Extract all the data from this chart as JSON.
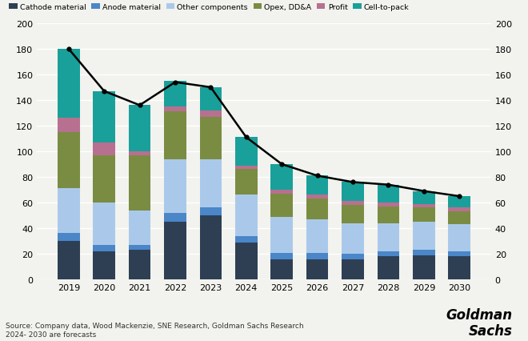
{
  "years": [
    2019,
    2020,
    2021,
    2022,
    2023,
    2024,
    2025,
    2026,
    2027,
    2028,
    2029,
    2030
  ],
  "cathode": [
    30,
    22,
    23,
    45,
    50,
    29,
    16,
    16,
    16,
    18,
    19,
    18
  ],
  "anode": [
    6,
    5,
    4,
    7,
    6,
    5,
    5,
    5,
    4,
    4,
    4,
    4
  ],
  "other_components": [
    35,
    33,
    27,
    42,
    38,
    32,
    28,
    26,
    24,
    22,
    22,
    21
  ],
  "opex": [
    44,
    37,
    43,
    37,
    33,
    20,
    18,
    16,
    14,
    13,
    11,
    10
  ],
  "profit": [
    11,
    10,
    3,
    4,
    5,
    3,
    3,
    3,
    3,
    3,
    3,
    3
  ],
  "cell_to_pack": [
    54,
    40,
    36,
    20,
    18,
    22,
    20,
    15,
    15,
    14,
    10,
    9
  ],
  "line_values": [
    180,
    147,
    136,
    154,
    150,
    111,
    90,
    81,
    76,
    74,
    69,
    65
  ],
  "colors": {
    "cathode": "#2e3f54",
    "anode": "#4a86c8",
    "other_components": "#aac9ea",
    "opex": "#7a8c42",
    "profit": "#b87090",
    "cell_to_pack": "#1aa09a"
  },
  "legend_labels": [
    "Cathode material",
    "Anode material",
    "Other components",
    "Opex, DD&A",
    "Profit",
    "Cell-to-pack"
  ],
  "source_line1": "Source: Company data, Wood Mackenzie, SNE Research, Goldman Sachs Research",
  "source_line2": "2024- 2030 are forecasts",
  "ylim": [
    0,
    200
  ],
  "yticks": [
    0,
    20,
    40,
    60,
    80,
    100,
    120,
    140,
    160,
    180,
    200
  ],
  "bg_color": "#f2f2ee"
}
